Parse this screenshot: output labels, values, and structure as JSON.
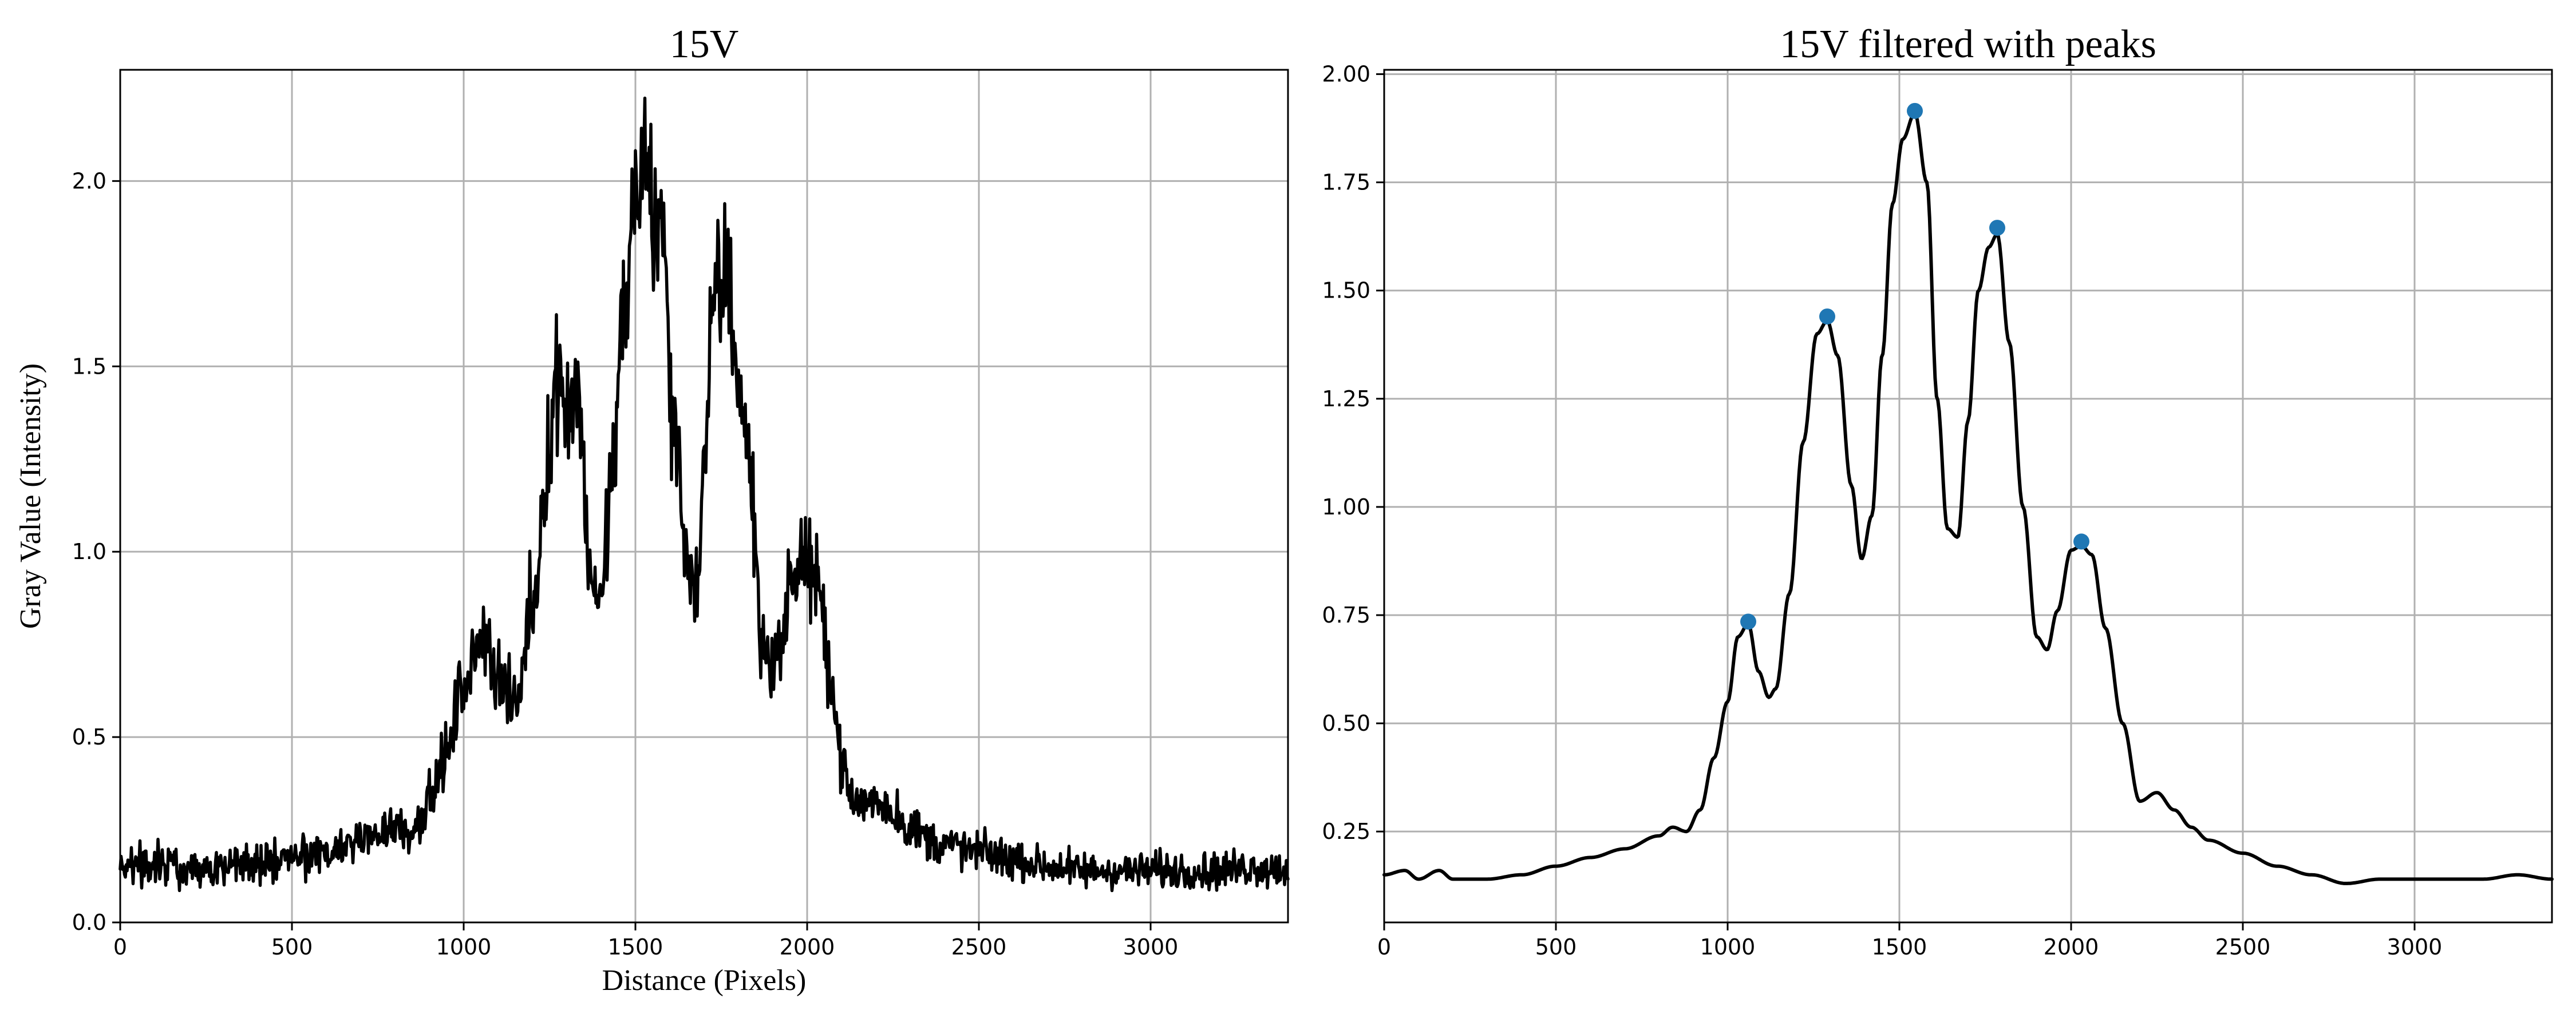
{
  "chart_data": [
    {
      "type": "line",
      "title": "15V",
      "xlabel": "Distance (Pixels)",
      "ylabel": "Gray Value (Intensity)",
      "xlim": [
        0,
        3400
      ],
      "ylim": [
        0.0,
        2.3
      ],
      "xticks": [
        0,
        500,
        1000,
        1500,
        2000,
        2500,
        3000
      ],
      "yticks": [
        0.0,
        0.5,
        1.0,
        1.5,
        2.0
      ],
      "xtick_labels": [
        "0",
        "500",
        "1000",
        "1500",
        "2000",
        "2500",
        "3000"
      ],
      "ytick_labels": [
        "0.0",
        "0.5",
        "1.0",
        "1.5",
        "2.0"
      ],
      "grid": true,
      "line_color": "#000000",
      "series": [
        {
          "x": [
            0,
            100,
            200,
            300,
            400,
            500,
            600,
            700,
            800,
            850,
            900,
            950,
            1000,
            1030,
            1060,
            1100,
            1150,
            1200,
            1250,
            1270,
            1300,
            1330,
            1370,
            1400,
            1430,
            1470,
            1500,
            1530,
            1550,
            1580,
            1610,
            1650,
            1680,
            1700,
            1730,
            1770,
            1800,
            1830,
            1870,
            1900,
            1930,
            1960,
            2000,
            2030,
            2060,
            2100,
            2130,
            2200,
            2250,
            2300,
            2400,
            2500,
            2600,
            2700,
            2800,
            2900,
            3000,
            3100,
            3200,
            3300,
            3400
          ],
          "y": [
            0.16,
            0.16,
            0.15,
            0.15,
            0.16,
            0.17,
            0.19,
            0.22,
            0.26,
            0.25,
            0.33,
            0.45,
            0.65,
            0.7,
            0.8,
            0.66,
            0.58,
            0.86,
            1.28,
            1.48,
            1.4,
            1.45,
            0.95,
            0.85,
            1.2,
            1.65,
            1.95,
            2.1,
            1.9,
            1.85,
            1.35,
            1.0,
            0.9,
            1.2,
            1.7,
            1.75,
            1.45,
            1.25,
            0.75,
            0.7,
            0.78,
            0.95,
            0.98,
            0.9,
            0.72,
            0.45,
            0.32,
            0.33,
            0.3,
            0.25,
            0.21,
            0.19,
            0.17,
            0.15,
            0.14,
            0.14,
            0.14,
            0.14,
            0.14,
            0.15,
            0.14
          ],
          "noise": 0.028
        }
      ]
    },
    {
      "type": "line",
      "title": "15V filtered with peaks",
      "xlabel": "",
      "ylabel": "",
      "xlim": [
        0,
        3400
      ],
      "ylim": [
        0.04,
        2.01
      ],
      "xticks": [
        0,
        500,
        1000,
        1500,
        2000,
        2500,
        3000
      ],
      "yticks": [
        0.25,
        0.5,
        0.75,
        1.0,
        1.25,
        1.5,
        1.75,
        2.0
      ],
      "xtick_labels": [
        "0",
        "500",
        "1000",
        "1500",
        "2000",
        "2500",
        "3000"
      ],
      "ytick_labels": [
        "0.25",
        "0.50",
        "0.75",
        "1.00",
        "1.25",
        "1.50",
        "1.75",
        "2.00"
      ],
      "grid": true,
      "line_color": "#000000",
      "marker_color": "#1f77b4",
      "series": [
        {
          "x": [
            0,
            60,
            100,
            160,
            200,
            250,
            300,
            400,
            500,
            600,
            700,
            800,
            840,
            880,
            920,
            960,
            1000,
            1030,
            1060,
            1090,
            1120,
            1140,
            1180,
            1220,
            1260,
            1290,
            1320,
            1360,
            1390,
            1420,
            1450,
            1480,
            1510,
            1545,
            1580,
            1610,
            1640,
            1670,
            1700,
            1730,
            1760,
            1785,
            1820,
            1860,
            1900,
            1930,
            1960,
            2000,
            2030,
            2060,
            2100,
            2150,
            2200,
            2250,
            2300,
            2350,
            2400,
            2500,
            2600,
            2700,
            2800,
            2900,
            3000,
            3100,
            3200,
            3300,
            3400
          ],
          "y": [
            0.15,
            0.16,
            0.14,
            0.16,
            0.14,
            0.14,
            0.14,
            0.15,
            0.17,
            0.19,
            0.21,
            0.24,
            0.26,
            0.25,
            0.3,
            0.42,
            0.55,
            0.7,
            0.73,
            0.62,
            0.56,
            0.58,
            0.8,
            1.15,
            1.4,
            1.43,
            1.35,
            1.05,
            0.88,
            0.98,
            1.35,
            1.7,
            1.85,
            1.91,
            1.75,
            1.25,
            0.95,
            0.93,
            1.2,
            1.5,
            1.6,
            1.63,
            1.38,
            1.0,
            0.7,
            0.67,
            0.76,
            0.9,
            0.91,
            0.89,
            0.72,
            0.5,
            0.32,
            0.34,
            0.3,
            0.26,
            0.23,
            0.2,
            0.17,
            0.15,
            0.13,
            0.14,
            0.14,
            0.14,
            0.14,
            0.15,
            0.14
          ]
        }
      ],
      "peaks": {
        "x": [
          1060,
          1290,
          1545,
          1785,
          2030
        ],
        "y": [
          0.735,
          1.44,
          1.915,
          1.645,
          0.92
        ]
      }
    }
  ]
}
